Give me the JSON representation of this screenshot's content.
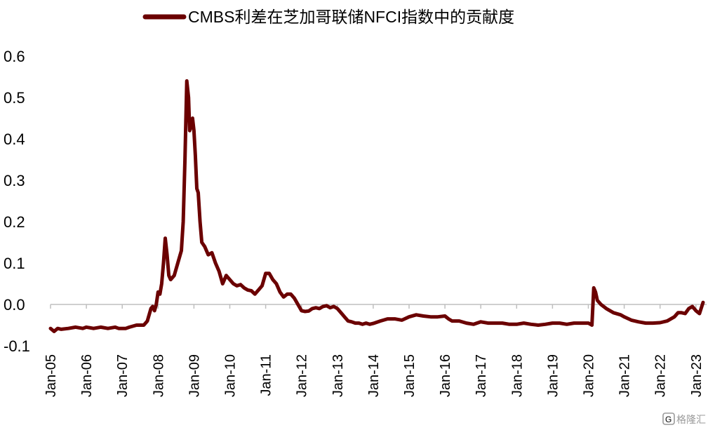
{
  "chart_data": {
    "type": "line",
    "title": "",
    "xlabel": "",
    "ylabel": "",
    "ylim": [
      -0.1,
      0.6
    ],
    "yticks": [
      "0.6",
      "0.5",
      "0.4",
      "0.3",
      "0.2",
      "0.1",
      "0.0",
      "-0.1"
    ],
    "yticks_values": [
      0.6,
      0.5,
      0.4,
      0.3,
      0.2,
      0.1,
      0.0,
      -0.1
    ],
    "xticks": [
      "Jan-05",
      "Jan-06",
      "Jan-07",
      "Jan-08",
      "Jan-09",
      "Jan-10",
      "Jan-11",
      "Jan-12",
      "Jan-13",
      "Jan-14",
      "Jan-15",
      "Jan-16",
      "Jan-17",
      "Jan-18",
      "Jan-19",
      "Jan-20",
      "Jan-21",
      "Jan-22",
      "Jan-23"
    ],
    "xticks_values": [
      2005,
      2006,
      2007,
      2008,
      2009,
      2010,
      2011,
      2012,
      2013,
      2014,
      2015,
      2016,
      2017,
      2018,
      2019,
      2020,
      2021,
      2022,
      2023
    ],
    "legend_position": "top",
    "grid": false,
    "series": [
      {
        "name": "CMBS利差在芝加哥联储NFCI指数中的贡献度",
        "color": "#6b0000",
        "x": [
          2005.0,
          2005.1,
          2005.2,
          2005.3,
          2005.5,
          2005.7,
          2005.9,
          2006.0,
          2006.2,
          2006.4,
          2006.6,
          2006.8,
          2006.9,
          2007.1,
          2007.2,
          2007.4,
          2007.6,
          2007.7,
          2007.8,
          2007.85,
          2007.9,
          2007.95,
          2008.0,
          2008.05,
          2008.1,
          2008.15,
          2008.2,
          2008.25,
          2008.3,
          2008.35,
          2008.45,
          2008.55,
          2008.65,
          2008.7,
          2008.75,
          2008.8,
          2008.85,
          2008.88,
          2008.92,
          2008.96,
          2009.0,
          2009.04,
          2009.08,
          2009.12,
          2009.17,
          2009.22,
          2009.3,
          2009.4,
          2009.5,
          2009.6,
          2009.7,
          2009.8,
          2009.9,
          2010.0,
          2010.1,
          2010.2,
          2010.3,
          2010.4,
          2010.5,
          2010.6,
          2010.7,
          2010.8,
          2010.9,
          2011.0,
          2011.1,
          2011.2,
          2011.3,
          2011.4,
          2011.5,
          2011.6,
          2011.7,
          2011.8,
          2011.9,
          2012.0,
          2012.1,
          2012.2,
          2012.3,
          2012.4,
          2012.5,
          2012.6,
          2012.7,
          2012.8,
          2012.9,
          2013.0,
          2013.1,
          2013.2,
          2013.3,
          2013.4,
          2013.5,
          2013.6,
          2013.7,
          2013.8,
          2013.9,
          2014.0,
          2014.2,
          2014.4,
          2014.6,
          2014.8,
          2015.0,
          2015.2,
          2015.4,
          2015.6,
          2015.8,
          2016.0,
          2016.1,
          2016.2,
          2016.4,
          2016.6,
          2016.8,
          2017.0,
          2017.2,
          2017.4,
          2017.6,
          2017.8,
          2018.0,
          2018.2,
          2018.4,
          2018.6,
          2018.8,
          2019.0,
          2019.2,
          2019.4,
          2019.6,
          2019.8,
          2020.0,
          2020.1,
          2020.15,
          2020.2,
          2020.25,
          2020.35,
          2020.5,
          2020.7,
          2020.9,
          2021.0,
          2021.2,
          2021.4,
          2021.6,
          2021.8,
          2022.0,
          2022.2,
          2022.4,
          2022.5,
          2022.6,
          2022.7,
          2022.8,
          2022.9,
          2023.0,
          2023.1,
          2023.2
        ],
        "y": [
          -0.058,
          -0.065,
          -0.058,
          -0.06,
          -0.058,
          -0.055,
          -0.058,
          -0.055,
          -0.058,
          -0.055,
          -0.058,
          -0.055,
          -0.058,
          -0.058,
          -0.055,
          -0.05,
          -0.05,
          -0.04,
          -0.01,
          -0.005,
          -0.015,
          0.0,
          0.03,
          0.025,
          0.05,
          0.1,
          0.16,
          0.12,
          0.07,
          0.06,
          0.07,
          0.1,
          0.13,
          0.2,
          0.35,
          0.54,
          0.5,
          0.42,
          0.43,
          0.45,
          0.42,
          0.36,
          0.28,
          0.27,
          0.2,
          0.15,
          0.14,
          0.12,
          0.125,
          0.1,
          0.08,
          0.05,
          0.07,
          0.06,
          0.05,
          0.045,
          0.048,
          0.04,
          0.035,
          0.033,
          0.025,
          0.035,
          0.045,
          0.075,
          0.075,
          0.06,
          0.05,
          0.03,
          0.018,
          0.025,
          0.025,
          0.015,
          0.0,
          -0.015,
          -0.017,
          -0.016,
          -0.01,
          -0.008,
          -0.01,
          -0.005,
          -0.003,
          -0.008,
          -0.005,
          -0.01,
          -0.02,
          -0.03,
          -0.04,
          -0.042,
          -0.045,
          -0.045,
          -0.048,
          -0.045,
          -0.048,
          -0.046,
          -0.04,
          -0.035,
          -0.035,
          -0.038,
          -0.03,
          -0.025,
          -0.028,
          -0.03,
          -0.03,
          -0.028,
          -0.035,
          -0.04,
          -0.04,
          -0.045,
          -0.048,
          -0.042,
          -0.045,
          -0.045,
          -0.045,
          -0.048,
          -0.048,
          -0.045,
          -0.048,
          -0.05,
          -0.048,
          -0.045,
          -0.045,
          -0.048,
          -0.045,
          -0.045,
          -0.045,
          -0.05,
          0.04,
          0.03,
          0.01,
          0.0,
          -0.01,
          -0.02,
          -0.025,
          -0.03,
          -0.038,
          -0.042,
          -0.045,
          -0.045,
          -0.044,
          -0.04,
          -0.03,
          -0.02,
          -0.02,
          -0.022,
          -0.01,
          -0.005,
          -0.015,
          -0.022,
          0.005
        ]
      }
    ]
  },
  "watermark": {
    "text": "格隆汇",
    "icon": "g-logo-icon"
  }
}
